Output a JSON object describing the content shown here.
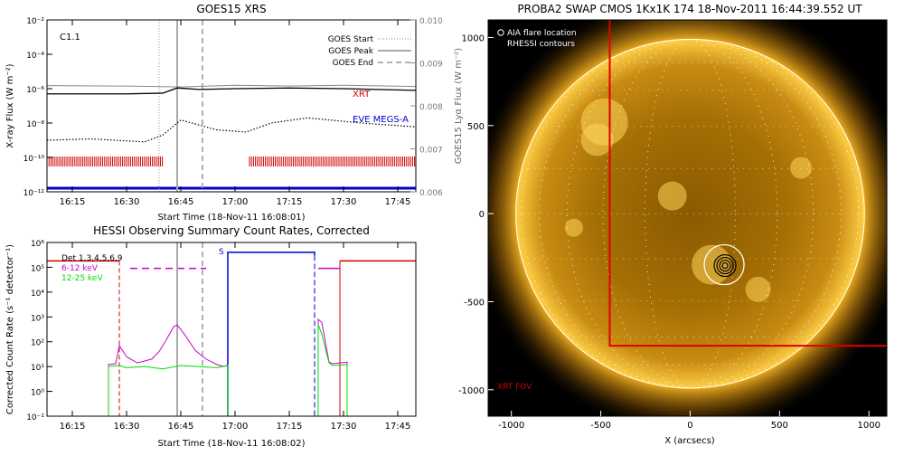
{
  "chart_data": [
    {
      "id": "goes",
      "type": "line",
      "title": "GOES15 XRS",
      "xlabel": "Start Time (18-Nov-11 16:08:01)",
      "ylabel": "X-ray Flux (W m⁻²)",
      "y2label": "GOES15 Lyα Flux (W m⁻²)",
      "yscale": "log",
      "ylim": [
        1e-12,
        0.01
      ],
      "y2lim": [
        0.006,
        0.01
      ],
      "xlim": [
        "16:08",
        "17:50"
      ],
      "xticks": [
        "16:15",
        "16:30",
        "16:45",
        "17:00",
        "17:15",
        "17:30",
        "17:45"
      ],
      "yticks": [
        "10⁻¹²",
        "10⁻¹⁰",
        "10⁻⁸",
        "10⁻⁶",
        "10⁻⁴",
        "10⁻²"
      ],
      "y2ticks": [
        "0.006",
        "0.007",
        "0.008",
        "0.009",
        "0.010"
      ],
      "flare_class": "C1.1",
      "legend": [
        "GOES Start",
        "GOES Peak",
        "GOES End"
      ],
      "legend_position": "top-right",
      "markers": {
        "start": "16:39",
        "peak": "16:44",
        "end": "16:51"
      },
      "labels": {
        "xrt": "XRT",
        "eve": "EVE MEGS-A"
      },
      "colors": {
        "xrt": "#cc0000",
        "eve": "#0000cc",
        "axis": "#000000"
      },
      "series": [
        {
          "name": "long",
          "x": [
            "16:08",
            "16:30",
            "16:40",
            "16:44",
            "16:50",
            "17:00",
            "17:15",
            "17:30",
            "17:50"
          ],
          "y": [
            5e-07,
            5e-07,
            5.5e-07,
            1.1e-06,
            9e-07,
            1e-06,
            1.1e-06,
            1e-06,
            8e-07
          ]
        },
        {
          "name": "short",
          "x": [
            "16:08",
            "16:20",
            "16:35",
            "16:40",
            "16:45",
            "16:55",
            "17:03",
            "17:10",
            "17:20",
            "17:35",
            "17:50"
          ],
          "y": [
            1e-09,
            1.2e-09,
            8e-10,
            2e-09,
            1.5e-08,
            4e-09,
            3e-09,
            1e-08,
            2e-08,
            1e-08,
            6e-09
          ]
        },
        {
          "name": "lya",
          "x": [
            "16:08",
            "16:30",
            "16:45",
            "17:00",
            "17:15",
            "17:30",
            "17:50"
          ],
          "y": [
            0.00847,
            0.00846,
            0.00844,
            0.00848,
            0.00846,
            0.00848,
            0.00845
          ]
        }
      ],
      "xrt_coverage": [
        [
          "16:08",
          "16:40"
        ],
        [
          "17:04",
          "17:50"
        ]
      ],
      "eve_coverage": [
        [
          "16:08",
          "17:50"
        ]
      ]
    },
    {
      "id": "hessi",
      "type": "line",
      "title": "HESSI Observing Summary Count Rates, Corrected",
      "xlabel": "Start Time (18-Nov-11 16:08:02)",
      "ylabel": "Corrected Count Rate (s⁻¹ detector⁻¹)",
      "yscale": "log",
      "ylim": [
        0.1,
        1000000.0
      ],
      "xlim": [
        "16:08",
        "17:50"
      ],
      "xticks": [
        "16:15",
        "16:30",
        "16:45",
        "17:00",
        "17:15",
        "17:30",
        "17:45"
      ],
      "yticks": [
        "10⁻¹",
        "10⁰",
        "10¹",
        "10²",
        "10³",
        "10⁴",
        "10⁵",
        "10⁶"
      ],
      "legend": [
        "Det 1,3,4,5,6,9",
        "6-12 keV",
        "12-25 keV"
      ],
      "legend_position": "top-left",
      "colors": {
        "e1": "#cc00cc",
        "e2": "#00dd00",
        "saa": "#0000cc",
        "night": "#cc0000"
      },
      "saa_label": "S",
      "series": [
        {
          "name": "6-12 keV",
          "x": [
            "16:25",
            "16:27",
            "16:28",
            "16:30",
            "16:33",
            "16:37",
            "16:39",
            "16:41",
            "16:43",
            "16:44",
            "16:46",
            "16:49",
            "16:52",
            "16:55",
            "16:57",
            "16:58",
            "17:23",
            "17:24",
            "17:26",
            "17:27",
            "17:31"
          ],
          "y": [
            12,
            13,
            70,
            25,
            14,
            20,
            40,
            120,
            400,
            480,
            200,
            45,
            20,
            12,
            10,
            12,
            800,
            600,
            15,
            13,
            15
          ]
        },
        {
          "name": "12-25 keV",
          "x": [
            "16:25",
            "16:28",
            "16:30",
            "16:35",
            "16:40",
            "16:45",
            "16:50",
            "16:55",
            "16:58",
            "17:23",
            "17:24",
            "17:26",
            "17:27",
            "17:31"
          ],
          "y": [
            10,
            11,
            9,
            10,
            8,
            11,
            10,
            9,
            11,
            500,
            200,
            14,
            11,
            12
          ]
        }
      ],
      "night": [
        [
          "16:08",
          "16:28"
        ],
        [
          "17:29",
          "17:50"
        ]
      ],
      "saa": [
        [
          "16:58",
          "17:22"
        ]
      ],
      "overlay_markers": {
        "start": "16:39",
        "peak": "16:44",
        "end": "16:51"
      }
    },
    {
      "id": "swap",
      "type": "image",
      "title": "PROBA2 SWAP CMOS 1Kx1K 174 18-Nov-2011 16:44:39.552 UT",
      "xlabel": "X (arcsecs)",
      "xlim": [
        -1130,
        1100
      ],
      "ylim": [
        -1150,
        1100
      ],
      "xticks": [
        "-1000",
        "-500",
        "0",
        "500",
        "1000"
      ],
      "yticks": [
        "-1000",
        "-500",
        "0",
        "500",
        "1000"
      ],
      "legend": [
        "AIA flare location",
        "RHESSI contours"
      ],
      "legend_position": "top-left",
      "xrt_label": "XRT FOV",
      "flare_center": [
        190,
        -290
      ],
      "xrt_fov": {
        "x": [
          -450,
          1100
        ],
        "y": [
          -750,
          1100
        ]
      },
      "solar_radius": 975
    }
  ]
}
